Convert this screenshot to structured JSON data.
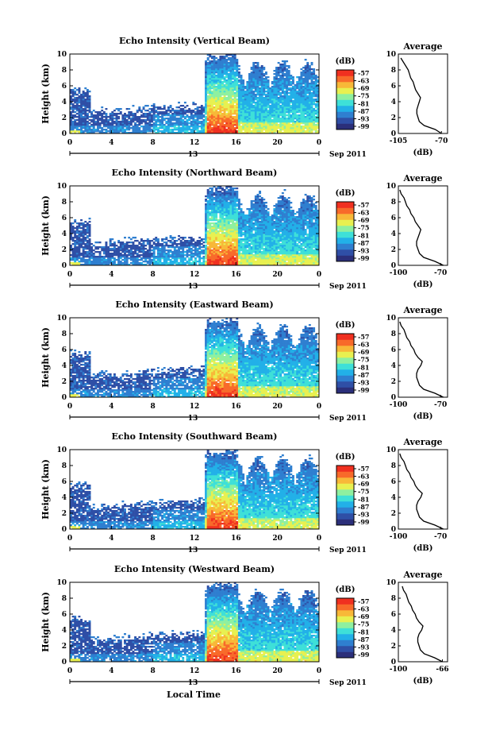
{
  "figure": {
    "xlabel": "Local Time",
    "date_label": "Sep 2011",
    "colorbar_unit": "(dB)",
    "colorbar_ticks": [
      "-57",
      "-63",
      "-69",
      "-75",
      "-81",
      "-87",
      "-93",
      "-99"
    ],
    "colormap": [
      "#2b2f7a",
      "#2f4fa6",
      "#2f7fd0",
      "#22b0e8",
      "#3ee0d8",
      "#8ef0a0",
      "#e8f050",
      "#f8b838",
      "#f86a2a",
      "#f03020"
    ]
  },
  "chart_data": [
    {
      "type": "heatmap",
      "title": "Echo Intensity (Vertical Beam)",
      "ylabel": "Height (km)",
      "xlim": [
        0,
        24
      ],
      "ylim": [
        0,
        10
      ],
      "x_ticks": [
        "0",
        "4",
        "8",
        "12",
        "16",
        "20",
        "0"
      ],
      "y_ticks": [
        "0",
        "2",
        "4",
        "6",
        "8",
        "10"
      ],
      "day_label": "13",
      "clim": [
        -99,
        -57
      ],
      "profile": {
        "title": "Average",
        "xlabel": "(dB)",
        "x_ticks": [
          "-105",
          "-70"
        ],
        "xlim": [
          -105,
          -65
        ],
        "heights": [
          0,
          0.5,
          1,
          1.5,
          2,
          2.5,
          3,
          3.5,
          4,
          4.5,
          5,
          5.5,
          6,
          6.5,
          7,
          7.5,
          8,
          8.5,
          9,
          9.5
        ],
        "values": [
          -70,
          -75,
          -84,
          -88,
          -89,
          -90,
          -90,
          -89,
          -88,
          -87,
          -89,
          -91,
          -92,
          -93,
          -95,
          -96,
          -97,
          -99,
          -101,
          -103
        ]
      }
    },
    {
      "type": "heatmap",
      "title": "Echo Intensity (Northward Beam)",
      "ylabel": "Height (km)",
      "xlim": [
        0,
        24
      ],
      "ylim": [
        0,
        10
      ],
      "x_ticks": [
        "0",
        "4",
        "8",
        "12",
        "16",
        "20",
        "0"
      ],
      "y_ticks": [
        "0",
        "2",
        "4",
        "6",
        "8",
        "10"
      ],
      "day_label": "13",
      "clim": [
        -99,
        -57
      ],
      "profile": {
        "title": "Average",
        "xlabel": "(dB)",
        "x_ticks": [
          "-100",
          "-70"
        ],
        "xlim": [
          -100,
          -65
        ],
        "heights": [
          0,
          0.5,
          1,
          1.5,
          2,
          2.5,
          3,
          3.5,
          4,
          4.5,
          5,
          5.5,
          6,
          6.5,
          7,
          7.5,
          8,
          8.5,
          9,
          9.5
        ],
        "values": [
          -68,
          -74,
          -82,
          -85,
          -86,
          -87,
          -87,
          -86,
          -85,
          -84,
          -86,
          -88,
          -89,
          -91,
          -92,
          -94,
          -95,
          -96,
          -98,
          -99
        ]
      }
    },
    {
      "type": "heatmap",
      "title": "Echo Intensity (Eastward Beam)",
      "ylabel": "Height (km)",
      "xlim": [
        0,
        24
      ],
      "ylim": [
        0,
        10
      ],
      "x_ticks": [
        "0",
        "4",
        "8",
        "12",
        "16",
        "20",
        "0"
      ],
      "y_ticks": [
        "0",
        "2",
        "4",
        "6",
        "8",
        "10"
      ],
      "day_label": "13",
      "clim": [
        -99,
        -57
      ],
      "profile": {
        "title": "Average",
        "xlabel": "(dB)",
        "x_ticks": [
          "-100",
          "-70"
        ],
        "xlim": [
          -100,
          -65
        ],
        "heights": [
          0,
          0.5,
          1,
          1.5,
          2,
          2.5,
          3,
          3.5,
          4,
          4.5,
          5,
          5.5,
          6,
          6.5,
          7,
          7.5,
          8,
          8.5,
          9,
          9.5
        ],
        "values": [
          -68,
          -74,
          -82,
          -85,
          -86,
          -87,
          -87,
          -86,
          -84,
          -83,
          -86,
          -88,
          -89,
          -91,
          -92,
          -94,
          -95,
          -96,
          -98,
          -99
        ]
      }
    },
    {
      "type": "heatmap",
      "title": "Echo Intensity (Southward Beam)",
      "ylabel": "Height (km)",
      "xlim": [
        0,
        24
      ],
      "ylim": [
        0,
        10
      ],
      "x_ticks": [
        "0",
        "4",
        "8",
        "12",
        "16",
        "20",
        "0"
      ],
      "y_ticks": [
        "0",
        "2",
        "4",
        "6",
        "8",
        "10"
      ],
      "day_label": "13",
      "clim": [
        -99,
        -57
      ],
      "profile": {
        "title": "Average",
        "xlabel": "(dB)",
        "x_ticks": [
          "-100",
          "-70"
        ],
        "xlim": [
          -100,
          -65
        ],
        "heights": [
          0,
          0.5,
          1,
          1.5,
          2,
          2.5,
          3,
          3.5,
          4,
          4.5,
          5,
          5.5,
          6,
          6.5,
          7,
          7.5,
          8,
          8.5,
          9,
          9.5
        ],
        "values": [
          -68,
          -74,
          -82,
          -85,
          -86,
          -87,
          -87,
          -86,
          -84,
          -83,
          -86,
          -88,
          -89,
          -91,
          -92,
          -94,
          -95,
          -96,
          -98,
          -99
        ]
      }
    },
    {
      "type": "heatmap",
      "title": "Echo Intensity (Westward Beam)",
      "ylabel": "Height (km)",
      "xlim": [
        0,
        24
      ],
      "ylim": [
        0,
        10
      ],
      "x_ticks": [
        "0",
        "4",
        "8",
        "12",
        "16",
        "20",
        "0"
      ],
      "y_ticks": [
        "0",
        "2",
        "4",
        "6",
        "8",
        "10"
      ],
      "day_label": "13",
      "clim": [
        -99,
        -57
      ],
      "profile": {
        "title": "Average",
        "xlabel": "(dB)",
        "x_ticks": [
          "-100",
          "-66"
        ],
        "xlim": [
          -100,
          -62
        ],
        "heights": [
          0,
          0.5,
          1,
          1.5,
          2,
          2.5,
          3,
          3.5,
          4,
          4.5,
          5,
          5.5,
          6,
          6.5,
          7,
          7.5,
          8,
          8.5,
          9,
          9.5
        ],
        "values": [
          -66,
          -72,
          -80,
          -83,
          -84,
          -85,
          -85,
          -84,
          -82,
          -81,
          -84,
          -86,
          -87,
          -89,
          -90,
          -92,
          -93,
          -94,
          -96,
          -97
        ]
      }
    }
  ]
}
